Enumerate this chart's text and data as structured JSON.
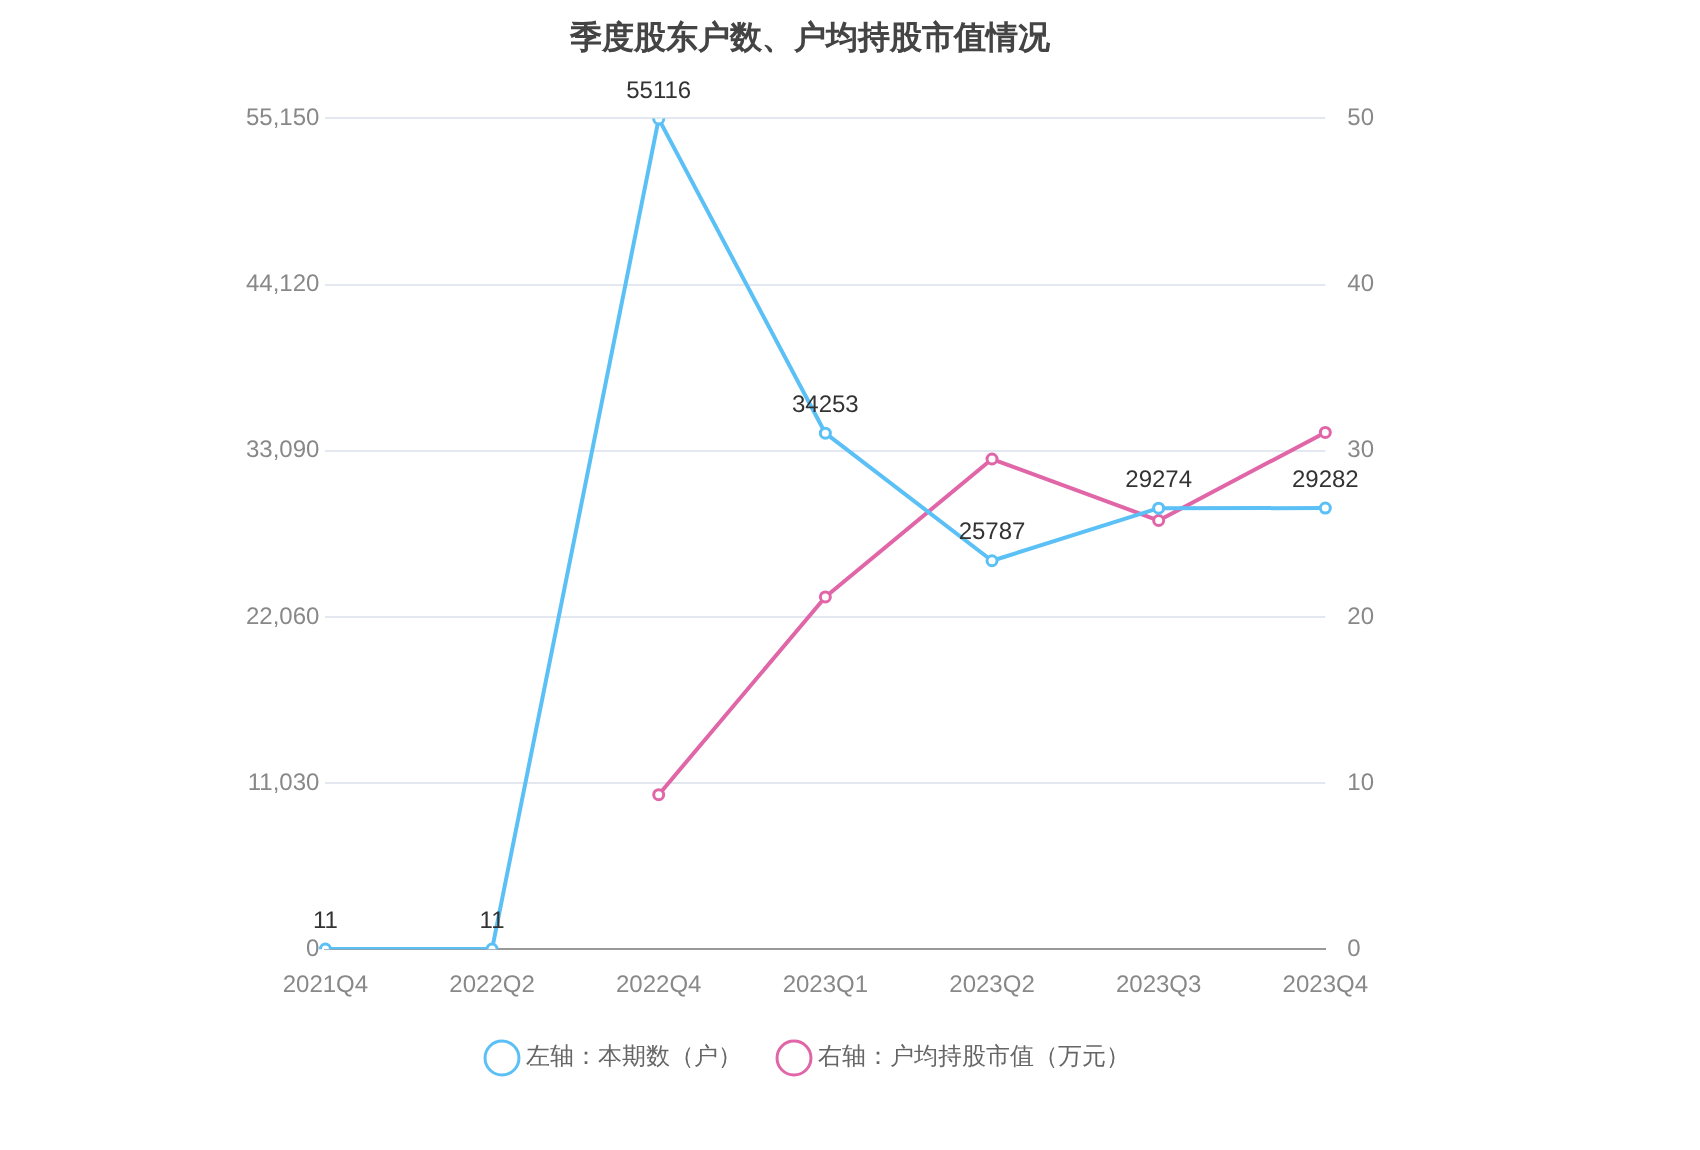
{
  "chart_data": {
    "type": "line",
    "title": "季度股东户数、户均持股市值情况",
    "categories": [
      "2021Q4",
      "2022Q2",
      "2022Q4",
      "2023Q1",
      "2023Q2",
      "2023Q3",
      "2023Q4"
    ],
    "series": [
      {
        "name": "左轴：本期数（户）",
        "color": "#5bc0f5",
        "values": [
          11,
          11,
          55116,
          34253,
          25787,
          29274,
          29282
        ],
        "value_labels": [
          "11",
          "11",
          "55116",
          "34253",
          "25787",
          "29274",
          "29282"
        ]
      },
      {
        "name": "右轴：户均持股市值（万元）",
        "color": "#e066a8",
        "axis": "y2",
        "values": [
          null,
          null,
          9.3,
          21.2,
          29.5,
          25.8,
          31.1
        ]
      }
    ],
    "ylim": [
      0,
      55150
    ],
    "yticks": [
      0,
      {
        "value": 11030,
        "label": "11,030"
      },
      {
        "value": 22060,
        "label": "22,060"
      },
      {
        "value": 33090,
        "label": "33,090"
      },
      {
        "value": 44120,
        "label": "44,120"
      },
      {
        "value": 55150,
        "label": "55,150"
      }
    ],
    "y2lim": [
      0,
      50
    ],
    "y2ticks": [
      0,
      10,
      20,
      30,
      40,
      50
    ],
    "grid": "y",
    "legend": "bottom",
    "marker": "circle",
    "line_style": "solid"
  }
}
